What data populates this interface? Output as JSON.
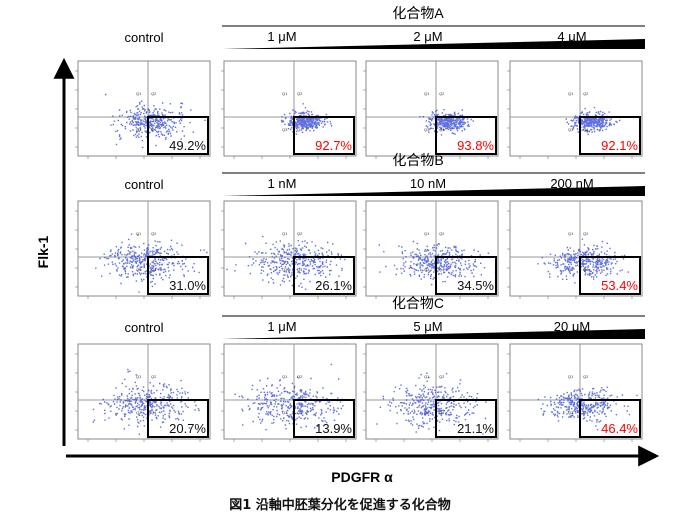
{
  "figure": {
    "y_axis_label": "Flk-1",
    "x_axis_label": "PDGFR α",
    "caption": "図1 沿軸中胚葉分化を促進する化合物"
  },
  "rows": [
    {
      "compound": "化合物A",
      "control_label": "control",
      "doses": [
        "1 μM",
        "2 μM",
        "4 μM"
      ],
      "percents": [
        "49.2%",
        "92.7%",
        "93.8%",
        "92.1%"
      ],
      "quadrant_fraction": [
        0.49,
        0.927,
        0.938,
        0.921
      ]
    },
    {
      "compound": "化合物B",
      "control_label": "control",
      "doses": [
        "1 nM",
        "10 nM",
        "200 nM"
      ],
      "percents": [
        "31.0%",
        "26.1%",
        "34.5%",
        "53.4%"
      ],
      "quadrant_fraction": [
        0.31,
        0.261,
        0.345,
        0.534
      ]
    },
    {
      "compound": "化合物C",
      "control_label": "control",
      "doses": [
        "1 μM",
        "5 μM",
        "20 μM"
      ],
      "percents": [
        "20.7%",
        "13.9%",
        "21.1%",
        "46.4%"
      ],
      "quadrant_fraction": [
        0.207,
        0.139,
        0.211,
        0.464
      ]
    }
  ],
  "colors": {
    "highlight": "#ff0000",
    "normal": "#111111",
    "dots": "#2a3fd6"
  }
}
